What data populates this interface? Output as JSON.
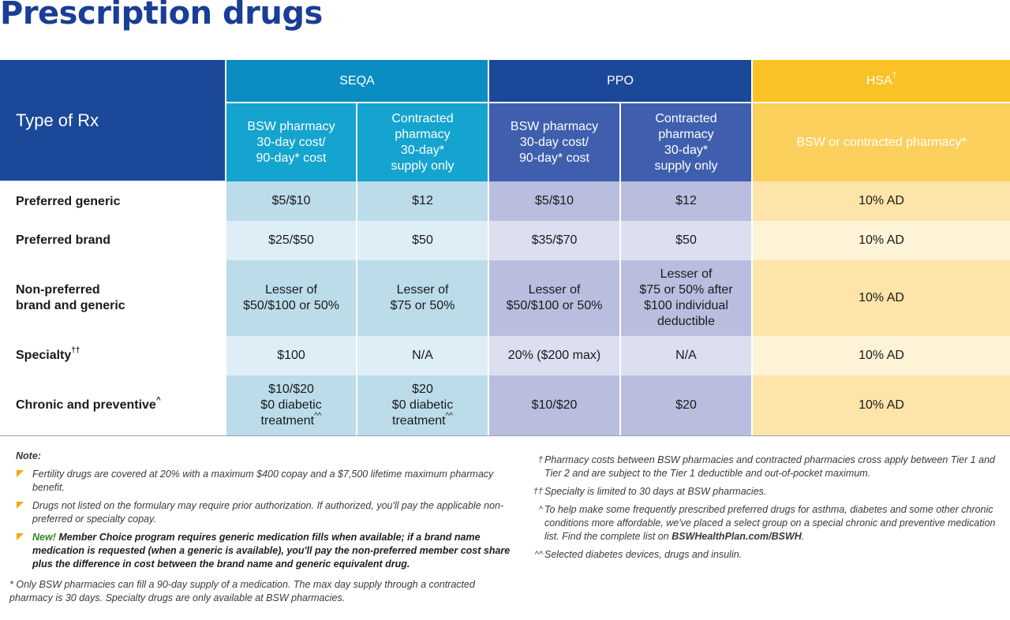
{
  "title": "Prescription drugs",
  "table": {
    "type_header": "Type of Rx",
    "groups": {
      "seqa": "SEQA",
      "ppo": "PPO",
      "hsa": "HSA",
      "hsa_mark": "†"
    },
    "subheaders": {
      "seqa_bsw": [
        "BSW pharmacy",
        "30-day cost/",
        "90-day* cost"
      ],
      "seqa_contracted": [
        "Contracted",
        "pharmacy",
        "30-day*",
        "supply only"
      ],
      "ppo_bsw": [
        "BSW pharmacy",
        "30-day cost/",
        "90-day* cost"
      ],
      "ppo_contracted": [
        "Contracted",
        "pharmacy",
        "30-day*",
        "supply only"
      ],
      "hsa": "BSW or contracted pharmacy*"
    },
    "rows": [
      {
        "label": [
          "Preferred generic"
        ],
        "mark": "",
        "seqa_bsw": [
          "$5/$10"
        ],
        "seqa_con": [
          "$12"
        ],
        "ppo_bsw": [
          "$5/$10"
        ],
        "ppo_con": [
          "$12"
        ],
        "hsa": [
          "10% AD"
        ]
      },
      {
        "label": [
          "Preferred brand"
        ],
        "mark": "",
        "seqa_bsw": [
          "$25/$50"
        ],
        "seqa_con": [
          "$50"
        ],
        "ppo_bsw": [
          "$35/$70"
        ],
        "ppo_con": [
          "$50"
        ],
        "hsa": [
          "10% AD"
        ]
      },
      {
        "label": [
          "Non-preferred",
          "brand and generic"
        ],
        "mark": "",
        "seqa_bsw": [
          "Lesser of",
          "$50/$100 or 50%"
        ],
        "seqa_con": [
          "Lesser of",
          "$75 or 50%"
        ],
        "ppo_bsw": [
          "Lesser of",
          "$50/$100 or 50%"
        ],
        "ppo_con": [
          "Lesser of",
          "$75 or 50% after",
          "$100 individual",
          "deductible"
        ],
        "hsa": [
          "10% AD"
        ]
      },
      {
        "label": [
          "Specialty"
        ],
        "mark": "††",
        "seqa_bsw": [
          "$100"
        ],
        "seqa_con": [
          "N/A"
        ],
        "ppo_bsw": [
          "20% ($200 max)"
        ],
        "ppo_con": [
          "N/A"
        ],
        "hsa": [
          "10% AD"
        ]
      },
      {
        "label": [
          "Chronic and preventive"
        ],
        "mark": "^",
        "seqa_bsw": [
          "$10/$20",
          "$0 diabetic",
          "treatment"
        ],
        "seqa_bsw_mark": "^^",
        "seqa_con": [
          "$20",
          "$0 diabetic",
          "treatment"
        ],
        "seqa_con_mark": "^^",
        "ppo_bsw": [
          "$10/$20"
        ],
        "ppo_con": [
          "$20"
        ],
        "hsa": [
          "10% AD"
        ]
      }
    ]
  },
  "notes": {
    "title": "Note:",
    "bullets": [
      "Fertility drugs are covered at 20% with a maximum $400 copay and a $7,500 lifetime maximum pharmacy benefit.",
      "Drugs not listed on the formulary may require prior authorization. If authorized, you'll pay the applicable non-preferred or specialty copay."
    ],
    "new_label": "New!",
    "new_text": "Member Choice program requires generic medication fills when available; if a brand name medication is requested (when a generic is available), you'll pay the non-preferred member cost share plus the difference in cost between the brand name and generic equivalent drug.",
    "star_mark": "*",
    "star_text": "Only BSW pharmacies can fill a 90-day supply of a medication. The max day supply through a contracted pharmacy is 30 days. Specialty drugs are only available at BSW pharmacies."
  },
  "footnotes": [
    {
      "mark": "†",
      "text": "Pharmacy costs between BSW pharmacies and contracted pharmacies cross apply between Tier 1 and Tier 2 and are subject to the Tier 1 deductible and out-of-pocket maximum."
    },
    {
      "mark": "††",
      "text": "Specialty is limited to 30 days at BSW pharmacies."
    },
    {
      "mark": "^",
      "text": "To help make some frequently prescribed preferred drugs for asthma, diabetes and some other chronic conditions more affordable, we've placed a select group on a special chronic and preventive medication list. Find the complete list on",
      "link": "BSWHealthPlan.com/BSWH",
      "end": "."
    },
    {
      "mark": "^^",
      "text": "Selected diabetes devices, drugs and insulin."
    }
  ]
}
